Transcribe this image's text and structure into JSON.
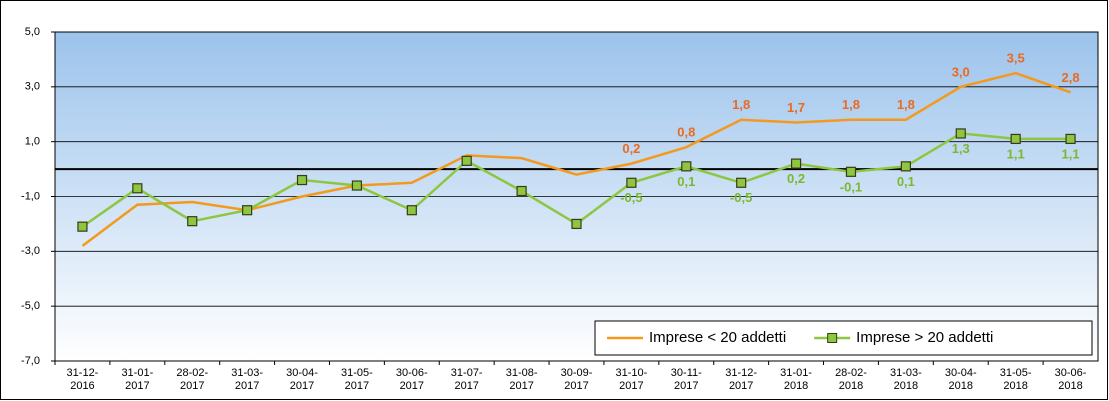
{
  "chart_data": {
    "type": "line",
    "categories": [
      "31-12-2016",
      "31-01-2017",
      "28-02-2017",
      "31-03-2017",
      "30-04-2017",
      "31-05-2017",
      "30-06-2017",
      "31-07-2017",
      "31-08-2017",
      "30-09-2017",
      "31-10-2017",
      "30-11-2017",
      "31-12-2017",
      "31-01-2018",
      "28-02-2018",
      "31-03-2018",
      "30-04-2018",
      "31-05-2018",
      "30-06-2018"
    ],
    "series": [
      {
        "name": "Imprese < 20 addetti",
        "color": "#f39a1e",
        "label_color": "#ea6a1f",
        "marker": false,
        "values": [
          -2.8,
          -1.3,
          -1.2,
          -1.5,
          -1.0,
          -0.6,
          -0.5,
          0.5,
          0.4,
          -0.2,
          0.2,
          0.8,
          1.8,
          1.7,
          1.8,
          1.8,
          3.0,
          3.5,
          2.8
        ],
        "value_labels": [
          null,
          null,
          null,
          null,
          null,
          null,
          null,
          null,
          null,
          null,
          "0,2",
          "0,8",
          "1,8",
          "1,7",
          "1,8",
          "1,8",
          "3,0",
          "3,5",
          "2,8"
        ]
      },
      {
        "name": "Imprese > 20 addetti",
        "color": "#8dc63f",
        "label_color": "#7cb82f",
        "marker": true,
        "values": [
          -2.1,
          -0.7,
          -1.9,
          -1.5,
          -0.4,
          -0.6,
          -1.5,
          0.3,
          -0.8,
          -2.0,
          -0.5,
          0.1,
          -0.5,
          0.2,
          -0.1,
          0.1,
          1.3,
          1.1,
          1.1
        ],
        "value_labels": [
          null,
          null,
          null,
          null,
          null,
          null,
          null,
          null,
          null,
          null,
          "-0,5",
          "0,1",
          "-0,5",
          "0,2",
          "-0,1",
          "0,1",
          "1,3",
          "1,1",
          "1,1"
        ]
      }
    ],
    "ylim": [
      -7,
      5
    ],
    "yticks": [
      {
        "value": -7,
        "label": "-7,0"
      },
      {
        "value": -5,
        "label": "-5,0"
      },
      {
        "value": -3,
        "label": "-3,0"
      },
      {
        "value": -1,
        "label": "-1,0"
      },
      {
        "value": 1,
        "label": "1,0"
      },
      {
        "value": 3,
        "label": "3,0"
      },
      {
        "value": 5,
        "label": "5,0"
      }
    ],
    "grid": true,
    "legend": "lower right"
  }
}
